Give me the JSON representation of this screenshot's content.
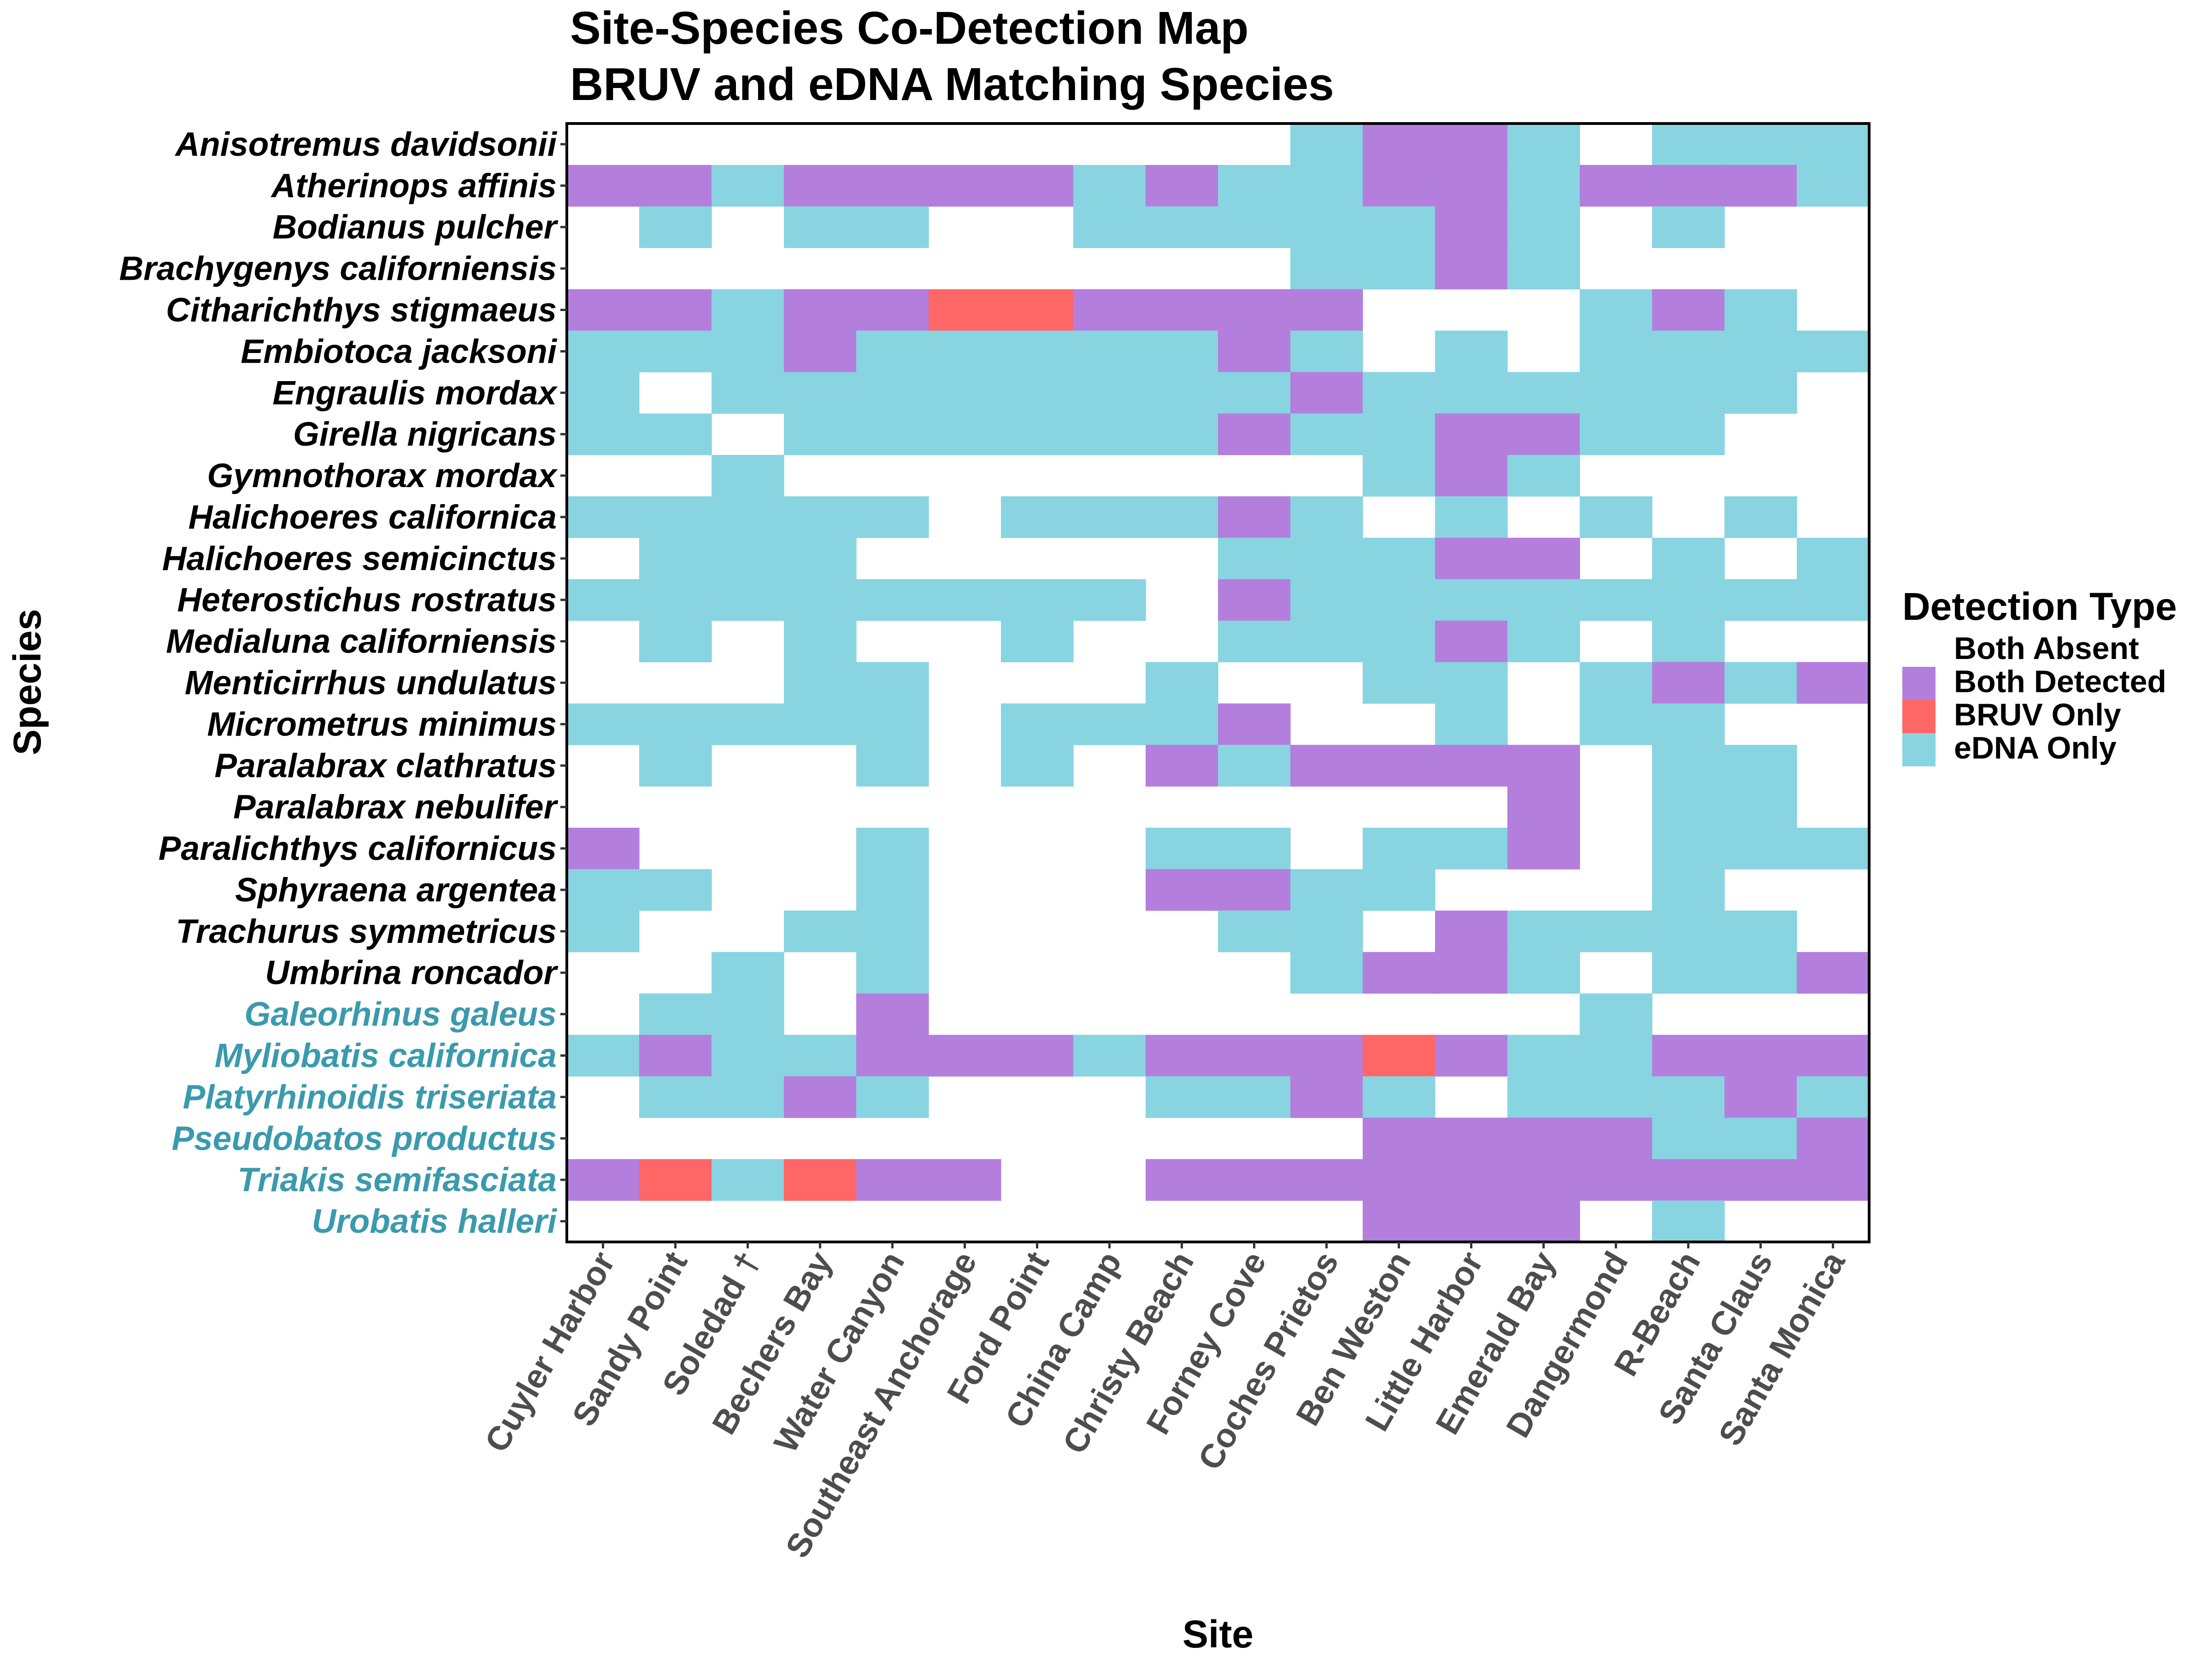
{
  "chart_data": {
    "type": "heatmap",
    "title": "Site-Species Co-Detection Map",
    "subtitle": "BRUV and eDNA Matching Species",
    "xlabel": "Site",
    "ylabel": "Species",
    "legend": {
      "title": "Detection Type",
      "position": "right",
      "items": [
        {
          "code": "A",
          "label": "Both Absent",
          "color": "#FFFFFF"
        },
        {
          "code": "D",
          "label": "Both Detected",
          "color": "#B47EDD"
        },
        {
          "code": "B",
          "label": "BRUV Only",
          "color": "#FF6666"
        },
        {
          "code": "E",
          "label": "eDNA Only",
          "color": "#88D4E1"
        }
      ]
    },
    "colors": {
      "fish_label": "#000000",
      "elasmobranch_label": "#3A9AAE",
      "x_tick": "#4D4D4D",
      "panel_border": "#000000"
    },
    "x": [
      "Cuyler Harbor",
      "Sandy Point",
      "Soledad †",
      "Bechers Bay",
      "Water Canyon",
      "Southeast Anchorage",
      "Ford Point",
      "China Camp",
      "Christy Beach",
      "Forney Cove",
      "Coches Prietos",
      "Ben Weston",
      "Little Harbor",
      "Emerald Bay",
      "Dangermond",
      "R-Beach",
      "Santa Claus",
      "Santa Monica"
    ],
    "y": [
      {
        "name": "Anisotremus davidsonii",
        "group": "fish"
      },
      {
        "name": "Atherinops affinis",
        "group": "fish"
      },
      {
        "name": "Bodianus pulcher",
        "group": "fish"
      },
      {
        "name": "Brachygenys californiensis",
        "group": "fish"
      },
      {
        "name": "Citharichthys stigmaeus",
        "group": "fish"
      },
      {
        "name": "Embiotoca jacksoni",
        "group": "fish"
      },
      {
        "name": "Engraulis mordax",
        "group": "fish"
      },
      {
        "name": "Girella nigricans",
        "group": "fish"
      },
      {
        "name": "Gymnothorax mordax",
        "group": "fish"
      },
      {
        "name": "Halichoeres californica",
        "group": "fish"
      },
      {
        "name": "Halichoeres semicinctus",
        "group": "fish"
      },
      {
        "name": "Heterostichus rostratus",
        "group": "fish"
      },
      {
        "name": "Medialuna californiensis",
        "group": "fish"
      },
      {
        "name": "Menticirrhus undulatus",
        "group": "fish"
      },
      {
        "name": "Micrometrus minimus",
        "group": "fish"
      },
      {
        "name": "Paralabrax clathratus",
        "group": "fish"
      },
      {
        "name": "Paralabrax nebulifer",
        "group": "fish"
      },
      {
        "name": "Paralichthys californicus",
        "group": "fish"
      },
      {
        "name": "Sphyraena argentea",
        "group": "fish"
      },
      {
        "name": "Trachurus symmetricus",
        "group": "fish"
      },
      {
        "name": "Umbrina roncador",
        "group": "fish"
      },
      {
        "name": "Galeorhinus galeus",
        "group": "elasmobranch"
      },
      {
        "name": "Myliobatis californica",
        "group": "elasmobranch"
      },
      {
        "name": "Platyrhinoidis triseriata",
        "group": "elasmobranch"
      },
      {
        "name": "Pseudobatos productus",
        "group": "elasmobranch"
      },
      {
        "name": "Triakis semifasciata",
        "group": "elasmobranch"
      },
      {
        "name": "Urobatis halleri",
        "group": "elasmobranch"
      }
    ],
    "values": [
      [
        "A",
        "A",
        "A",
        "A",
        "A",
        "A",
        "A",
        "A",
        "A",
        "A",
        "E",
        "D",
        "D",
        "E",
        "A",
        "E",
        "E",
        "E"
      ],
      [
        "D",
        "D",
        "E",
        "D",
        "D",
        "D",
        "D",
        "E",
        "D",
        "E",
        "E",
        "D",
        "D",
        "E",
        "D",
        "D",
        "D",
        "E"
      ],
      [
        "A",
        "E",
        "A",
        "E",
        "E",
        "A",
        "A",
        "E",
        "E",
        "E",
        "E",
        "E",
        "D",
        "E",
        "A",
        "E",
        "A",
        "A"
      ],
      [
        "A",
        "A",
        "A",
        "A",
        "A",
        "A",
        "A",
        "A",
        "A",
        "A",
        "E",
        "E",
        "D",
        "E",
        "A",
        "A",
        "A",
        "A"
      ],
      [
        "D",
        "D",
        "E",
        "D",
        "D",
        "B",
        "B",
        "D",
        "D",
        "D",
        "D",
        "A",
        "A",
        "A",
        "E",
        "D",
        "E",
        "A"
      ],
      [
        "E",
        "E",
        "E",
        "D",
        "E",
        "E",
        "E",
        "E",
        "E",
        "D",
        "E",
        "A",
        "E",
        "A",
        "E",
        "E",
        "E",
        "E"
      ],
      [
        "E",
        "A",
        "E",
        "E",
        "E",
        "E",
        "E",
        "E",
        "E",
        "E",
        "D",
        "E",
        "E",
        "E",
        "E",
        "E",
        "E",
        "A"
      ],
      [
        "E",
        "E",
        "A",
        "E",
        "E",
        "E",
        "E",
        "E",
        "E",
        "D",
        "E",
        "E",
        "D",
        "D",
        "E",
        "E",
        "A",
        "A"
      ],
      [
        "A",
        "A",
        "E",
        "A",
        "A",
        "A",
        "A",
        "A",
        "A",
        "A",
        "A",
        "E",
        "D",
        "E",
        "A",
        "A",
        "A",
        "A"
      ],
      [
        "E",
        "E",
        "E",
        "E",
        "E",
        "A",
        "E",
        "E",
        "E",
        "D",
        "E",
        "A",
        "E",
        "A",
        "E",
        "A",
        "E",
        "A"
      ],
      [
        "A",
        "E",
        "E",
        "E",
        "A",
        "A",
        "A",
        "A",
        "A",
        "E",
        "E",
        "E",
        "D",
        "D",
        "A",
        "E",
        "A",
        "E"
      ],
      [
        "E",
        "E",
        "E",
        "E",
        "E",
        "E",
        "E",
        "E",
        "A",
        "D",
        "E",
        "E",
        "E",
        "E",
        "E",
        "E",
        "E",
        "E"
      ],
      [
        "A",
        "E",
        "A",
        "E",
        "A",
        "A",
        "E",
        "A",
        "A",
        "E",
        "E",
        "E",
        "D",
        "E",
        "A",
        "E",
        "A",
        "A"
      ],
      [
        "A",
        "A",
        "A",
        "E",
        "E",
        "A",
        "A",
        "A",
        "E",
        "A",
        "A",
        "E",
        "E",
        "A",
        "E",
        "D",
        "E",
        "D"
      ],
      [
        "E",
        "E",
        "E",
        "E",
        "E",
        "A",
        "E",
        "E",
        "E",
        "D",
        "A",
        "A",
        "E",
        "A",
        "E",
        "E",
        "A",
        "A"
      ],
      [
        "A",
        "E",
        "A",
        "A",
        "E",
        "A",
        "E",
        "A",
        "D",
        "E",
        "D",
        "D",
        "D",
        "D",
        "A",
        "E",
        "E",
        "A"
      ],
      [
        "A",
        "A",
        "A",
        "A",
        "A",
        "A",
        "A",
        "A",
        "A",
        "A",
        "A",
        "A",
        "A",
        "D",
        "A",
        "E",
        "E",
        "A"
      ],
      [
        "D",
        "A",
        "A",
        "A",
        "E",
        "A",
        "A",
        "A",
        "E",
        "E",
        "A",
        "E",
        "E",
        "D",
        "A",
        "E",
        "E",
        "E"
      ],
      [
        "E",
        "E",
        "A",
        "A",
        "E",
        "A",
        "A",
        "A",
        "D",
        "D",
        "E",
        "E",
        "A",
        "A",
        "A",
        "E",
        "A",
        "A"
      ],
      [
        "E",
        "A",
        "A",
        "E",
        "E",
        "A",
        "A",
        "A",
        "A",
        "E",
        "E",
        "A",
        "D",
        "E",
        "E",
        "E",
        "E",
        "A"
      ],
      [
        "A",
        "A",
        "E",
        "A",
        "E",
        "A",
        "A",
        "A",
        "A",
        "A",
        "E",
        "D",
        "D",
        "E",
        "A",
        "E",
        "E",
        "D"
      ],
      [
        "A",
        "E",
        "E",
        "A",
        "D",
        "A",
        "A",
        "A",
        "A",
        "A",
        "A",
        "A",
        "A",
        "A",
        "E",
        "A",
        "A",
        "A"
      ],
      [
        "E",
        "D",
        "E",
        "E",
        "D",
        "D",
        "D",
        "E",
        "D",
        "D",
        "D",
        "B",
        "D",
        "E",
        "E",
        "D",
        "D",
        "D"
      ],
      [
        "A",
        "E",
        "E",
        "D",
        "E",
        "A",
        "A",
        "A",
        "E",
        "E",
        "D",
        "E",
        "A",
        "E",
        "E",
        "E",
        "D",
        "E"
      ],
      [
        "A",
        "A",
        "A",
        "A",
        "A",
        "A",
        "A",
        "A",
        "A",
        "A",
        "A",
        "D",
        "D",
        "D",
        "D",
        "E",
        "E",
        "D"
      ],
      [
        "D",
        "B",
        "E",
        "B",
        "D",
        "D",
        "A",
        "A",
        "D",
        "D",
        "D",
        "D",
        "D",
        "D",
        "D",
        "D",
        "D",
        "D"
      ],
      [
        "A",
        "A",
        "A",
        "A",
        "A",
        "A",
        "A",
        "A",
        "A",
        "A",
        "A",
        "D",
        "D",
        "D",
        "A",
        "E",
        "A",
        "A"
      ]
    ]
  }
}
